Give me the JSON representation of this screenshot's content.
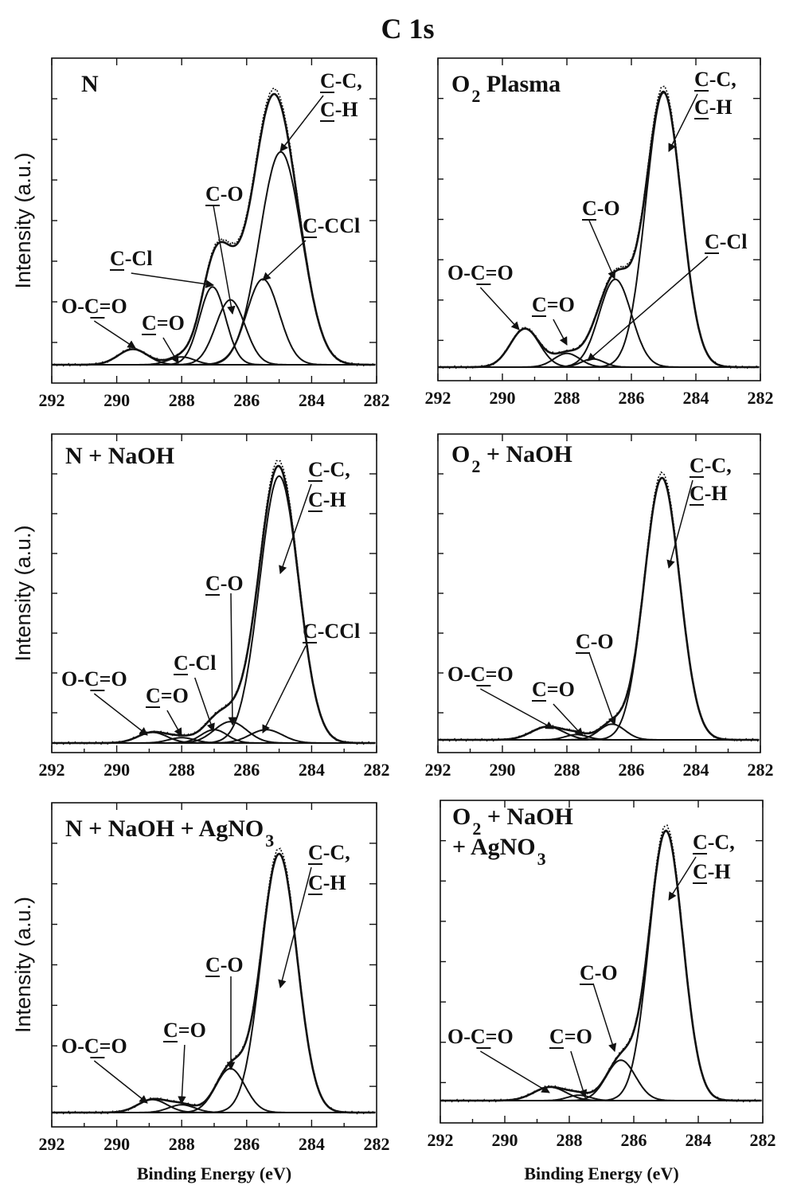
{
  "figure_title": "C 1s",
  "chart_data": [
    {
      "type": "line",
      "panel_label": "N",
      "ylabel": "Intensity (a.u.)",
      "xlabel": "",
      "xlim": [
        292,
        282
      ],
      "xticks": [
        292,
        290,
        288,
        286,
        284,
        282
      ],
      "series": [
        {
          "label": "C-C, C-H",
          "center": 284.95,
          "height": 0.82,
          "width": 0.65
        },
        {
          "label": "C-CCl",
          "center": 285.5,
          "height": 0.33,
          "width": 0.5
        },
        {
          "label": "C-O",
          "center": 286.5,
          "height": 0.25,
          "width": 0.45
        },
        {
          "label": "C-Cl",
          "center": 287.05,
          "height": 0.3,
          "width": 0.4
        },
        {
          "label": "C=O",
          "center": 288.0,
          "height": 0.03,
          "width": 0.4
        },
        {
          "label": "O-C=O",
          "center": 289.5,
          "height": 0.06,
          "width": 0.45
        }
      ]
    },
    {
      "type": "line",
      "panel_label": "O2 Plasma",
      "ylabel": "",
      "xlabel": "",
      "xlim": [
        292,
        282
      ],
      "xticks": [
        292,
        290,
        288,
        286,
        284,
        282
      ],
      "series": [
        {
          "label": "C-C, C-H",
          "center": 285.0,
          "height": 1.0,
          "width": 0.55
        },
        {
          "label": "C-O",
          "center": 286.5,
          "height": 0.32,
          "width": 0.5
        },
        {
          "label": "C-Cl",
          "center": 287.2,
          "height": 0.03,
          "width": 0.35
        },
        {
          "label": "C=O",
          "center": 288.0,
          "height": 0.05,
          "width": 0.4
        },
        {
          "label": "O-C=O",
          "center": 289.3,
          "height": 0.14,
          "width": 0.45
        }
      ]
    },
    {
      "type": "line",
      "panel_label": "N + NaOH",
      "ylabel": "Intensity (a.u.)",
      "xlabel": "",
      "xlim": [
        292,
        282
      ],
      "xticks": [
        292,
        290,
        288,
        286,
        284,
        282
      ],
      "series": [
        {
          "label": "C-C, C-H",
          "center": 285.0,
          "height": 1.0,
          "width": 0.6
        },
        {
          "label": "C-CCl",
          "center": 285.4,
          "height": 0.05,
          "width": 0.5
        },
        {
          "label": "C-O",
          "center": 286.5,
          "height": 0.08,
          "width": 0.5
        },
        {
          "label": "C-Cl",
          "center": 287.0,
          "height": 0.05,
          "width": 0.4
        },
        {
          "label": "C=O",
          "center": 288.0,
          "height": 0.02,
          "width": 0.4
        },
        {
          "label": "O-C=O",
          "center": 288.9,
          "height": 0.04,
          "width": 0.45
        }
      ]
    },
    {
      "type": "line",
      "panel_label": "O2 + NaOH",
      "ylabel": "",
      "xlabel": "",
      "xlim": [
        292,
        282
      ],
      "xticks": [
        292,
        290,
        288,
        286,
        284,
        282
      ],
      "series": [
        {
          "label": "C-C, C-H",
          "center": 285.05,
          "height": 1.0,
          "width": 0.55
        },
        {
          "label": "C-O",
          "center": 286.6,
          "height": 0.06,
          "width": 0.4
        },
        {
          "label": "C=O",
          "center": 287.7,
          "height": 0.02,
          "width": 0.35
        },
        {
          "label": "O-C=O",
          "center": 288.6,
          "height": 0.05,
          "width": 0.5
        }
      ]
    },
    {
      "type": "line",
      "panel_label": "N + NaOH + AgNO3",
      "ylabel": "Intensity (a.u.)",
      "xlabel": "Binding Energy (eV)",
      "xlim": [
        292,
        282
      ],
      "xticks": [
        292,
        290,
        288,
        286,
        284,
        282
      ],
      "series": [
        {
          "label": "C-C, C-H",
          "center": 285.0,
          "height": 1.0,
          "width": 0.55
        },
        {
          "label": "C-O",
          "center": 286.5,
          "height": 0.17,
          "width": 0.45
        },
        {
          "label": "C=O",
          "center": 288.0,
          "height": 0.03,
          "width": 0.4
        },
        {
          "label": "O-C=O",
          "center": 288.9,
          "height": 0.05,
          "width": 0.45
        }
      ]
    },
    {
      "type": "line",
      "panel_label": "O2 + NaOH + AgNO3",
      "ylabel": "",
      "xlabel": "Binding Energy (eV)",
      "xlim": [
        292,
        282
      ],
      "xticks": [
        292,
        290,
        288,
        286,
        284,
        282
      ],
      "series": [
        {
          "label": "C-C, C-H",
          "center": 285.0,
          "height": 1.0,
          "width": 0.52
        },
        {
          "label": "C-O",
          "center": 286.4,
          "height": 0.15,
          "width": 0.45
        },
        {
          "label": "C=O",
          "center": 287.7,
          "height": 0.02,
          "width": 0.35
        },
        {
          "label": "O-C=O",
          "center": 288.6,
          "height": 0.05,
          "width": 0.5
        }
      ]
    }
  ]
}
